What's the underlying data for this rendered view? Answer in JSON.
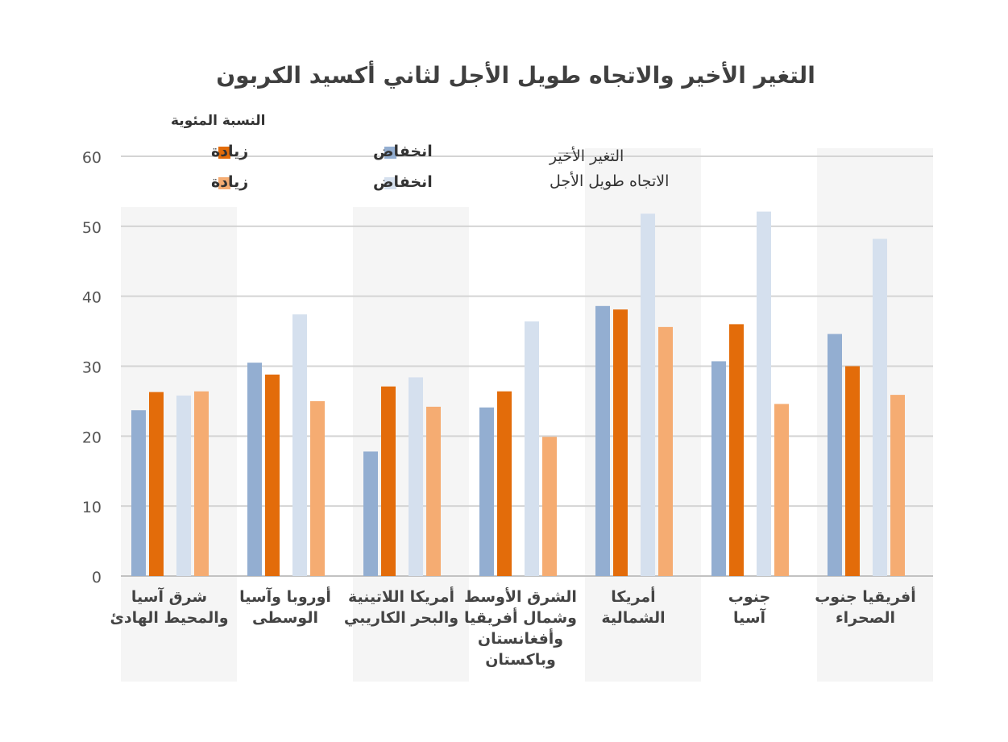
{
  "chart_data": {
    "type": "bar",
    "title": "التغير الأخير والاتجاه طويل الأجل لثاني أكسيد الكربون",
    "ylabel": "النسبة المئوية",
    "xlabel": "",
    "ylim": [
      0,
      60
    ],
    "yticks": [
      0,
      10,
      20,
      30,
      40,
      50,
      60
    ],
    "grid": true,
    "legend": {
      "placement": "top",
      "row_labels": [
        "التغير الأخير",
        "الاتجاه طويل الأجل"
      ],
      "decrease_label": "انخفاض",
      "increase_label": "زيادة"
    },
    "categories": [
      [
        "شرق آسيا",
        "والمحيط الهادئ"
      ],
      [
        "أوروبا وآسيا",
        "الوسطى"
      ],
      [
        "أمريكا اللاتينية",
        "والبحر الكاريبي"
      ],
      [
        "الشرق الأوسط",
        "وشمال أفريقيا",
        "وأفغانستان",
        "وباكستان"
      ],
      [
        "أمريكا",
        "الشمالية"
      ],
      [
        "جنوب",
        "آسيا"
      ],
      [
        "أفريقيا جنوب",
        "الصحراء"
      ]
    ],
    "series": [
      {
        "name": "التغير الأخير — انخفاض",
        "color": "#93aed1",
        "values": [
          23.7,
          30.5,
          17.8,
          24.1,
          38.6,
          30.7,
          34.6
        ]
      },
      {
        "name": "التغير الأخير — زيادة",
        "color": "#e36c0a",
        "values": [
          26.3,
          28.8,
          27.1,
          26.4,
          38.1,
          36.0,
          30.0
        ]
      },
      {
        "name": "الاتجاه طويل الأجل — انخفاض",
        "color": "#d5e0ee",
        "values": [
          25.8,
          37.4,
          28.4,
          36.4,
          51.8,
          52.1,
          48.2
        ]
      },
      {
        "name": "الاتجاه طويل الأجل — زيادة",
        "color": "#f5ac72",
        "values": [
          26.4,
          25.0,
          24.2,
          19.9,
          35.6,
          24.6,
          25.9
        ]
      }
    ]
  }
}
